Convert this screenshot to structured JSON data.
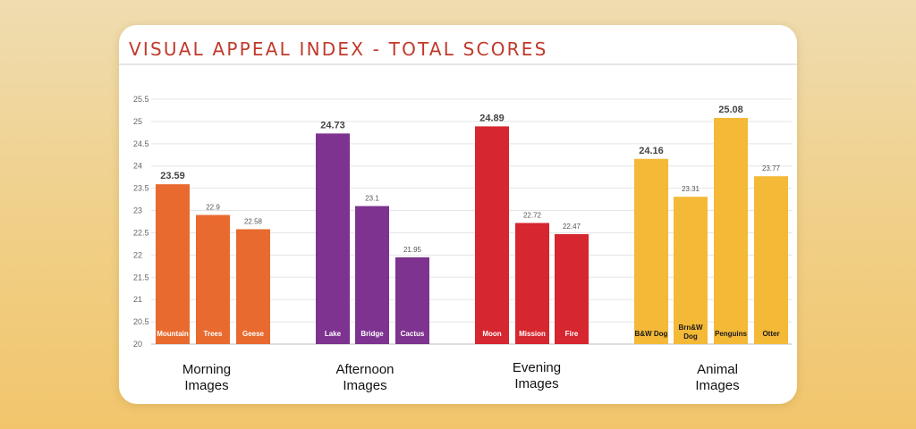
{
  "chart_data": {
    "type": "bar",
    "title": "VISUAL APPEAL INDEX - TOTAL SCORES",
    "ylim": [
      20,
      25.5
    ],
    "yticks": [
      "20",
      "20.5",
      "21",
      "21.5",
      "22",
      "22.5",
      "23",
      "23.5",
      "24",
      "24.5",
      "25",
      "25.5"
    ],
    "grid": true,
    "groups": [
      {
        "name_line1": "Morning",
        "name_line2": "Images",
        "color": "#e86a2f",
        "bars": [
          {
            "label": "Mountain",
            "value": 23.59,
            "value_text": "23.59",
            "emphasis": true
          },
          {
            "label": "Trees",
            "value": 22.9,
            "value_text": "22.9",
            "emphasis": false
          },
          {
            "label": "Geese",
            "value": 22.58,
            "value_text": "22.58",
            "emphasis": false
          }
        ]
      },
      {
        "name_line1": "Afternoon",
        "name_line2": "Images",
        "color": "#7d338f",
        "bars": [
          {
            "label": "Lake",
            "value": 24.73,
            "value_text": "24.73",
            "emphasis": true
          },
          {
            "label": "Bridge",
            "value": 23.1,
            "value_text": "23.1",
            "emphasis": false
          },
          {
            "label": "Cactus",
            "value": 21.95,
            "value_text": "21.95",
            "emphasis": false
          }
        ]
      },
      {
        "name_line1": "Evening",
        "name_line2": "Images",
        "color": "#d6262f",
        "bars": [
          {
            "label": "Moon",
            "value": 24.89,
            "value_text": "24.89",
            "emphasis": true
          },
          {
            "label": "Mission",
            "value": 22.72,
            "value_text": "22.72",
            "emphasis": false
          },
          {
            "label": "Fire",
            "value": 22.47,
            "value_text": "22.47",
            "emphasis": false
          }
        ]
      },
      {
        "name_line1": "Animal",
        "name_line2": "Images",
        "color": "#f4b937",
        "bars": [
          {
            "label": "B&W Dog",
            "value": 24.16,
            "value_text": "24.16",
            "emphasis": true
          },
          {
            "label": "Brn&W Dog",
            "value": 23.31,
            "value_text": "23.31",
            "emphasis": false
          },
          {
            "label": "Penguins",
            "value": 25.08,
            "value_text": "25.08",
            "emphasis": true
          },
          {
            "label": "Otter",
            "value": 23.77,
            "value_text": "23.77",
            "emphasis": false
          }
        ]
      }
    ]
  }
}
